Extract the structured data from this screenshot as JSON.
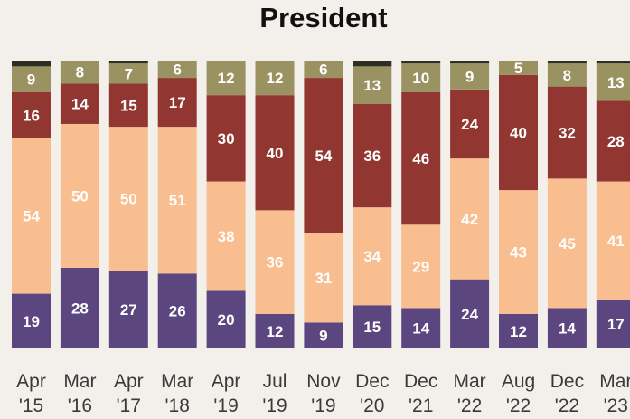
{
  "chart_data": {
    "type": "bar",
    "stacked": true,
    "title": "President",
    "categories": [
      [
        "Apr",
        "'15"
      ],
      [
        "Mar",
        "'16"
      ],
      [
        "Apr",
        "'17"
      ],
      [
        "Mar",
        "'18"
      ],
      [
        "Apr",
        "'19"
      ],
      [
        "Jul",
        "'19"
      ],
      [
        "Nov",
        "'19"
      ],
      [
        "Dec",
        "'20"
      ],
      [
        "Dec",
        "'21"
      ],
      [
        "Mar",
        "'22"
      ],
      [
        "Aug",
        "'22"
      ],
      [
        "Dec",
        "'22"
      ],
      [
        "Mar",
        "'23"
      ]
    ],
    "series": [
      {
        "color": "#5b4680",
        "values": [
          19,
          28,
          27,
          26,
          20,
          12,
          9,
          15,
          14,
          24,
          12,
          14,
          17
        ]
      },
      {
        "color": "#f9be8f",
        "values": [
          54,
          50,
          50,
          51,
          38,
          36,
          31,
          34,
          29,
          42,
          43,
          45,
          41
        ]
      },
      {
        "color": "#923632",
        "values": [
          16,
          14,
          15,
          17,
          30,
          40,
          54,
          36,
          46,
          24,
          40,
          32,
          28
        ]
      },
      {
        "color": "#9b9262",
        "values": [
          9,
          8,
          7,
          6,
          12,
          12,
          6,
          13,
          10,
          9,
          5,
          8,
          13
        ]
      },
      {
        "color": "#2f2f21",
        "values": [
          2,
          0,
          1,
          0,
          0,
          0,
          0,
          2,
          1,
          1,
          0,
          1,
          1
        ]
      }
    ],
    "ylim": [
      0,
      100
    ],
    "xlabel": "",
    "ylabel": "",
    "grid": false,
    "legend": "none"
  }
}
